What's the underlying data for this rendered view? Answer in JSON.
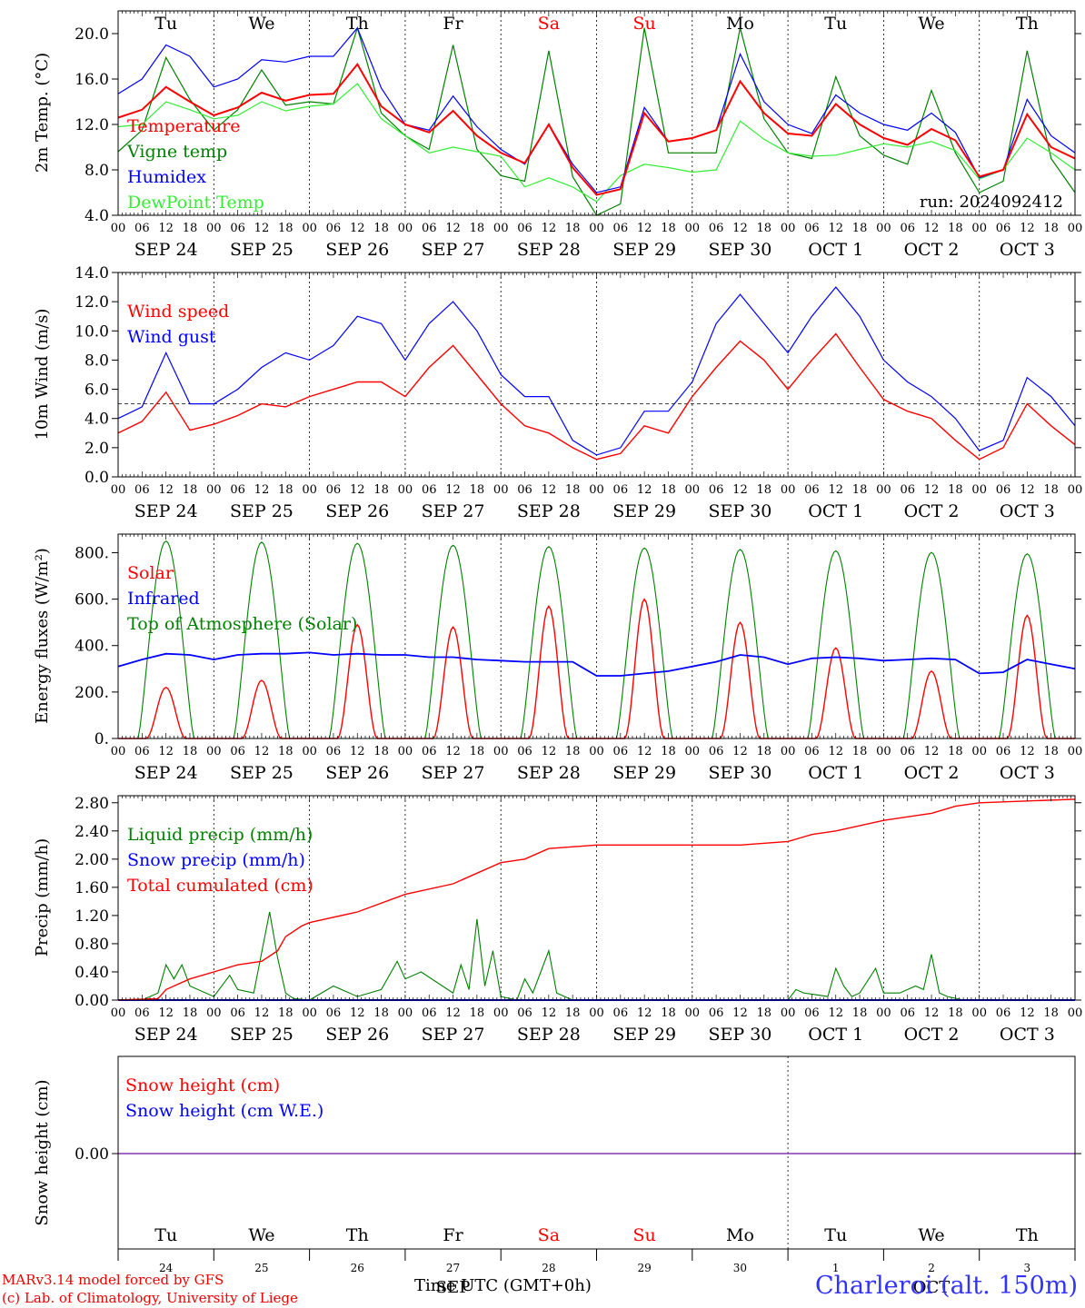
{
  "run_label": "run: 2024092412",
  "x_title": "Time UTC (GMT+0h)",
  "credit": [
    "MARv3.14 model forced by GFS",
    "(c) Lab. of Climatology, University of Liege"
  ],
  "station": "Charleroi (alt. 150m)",
  "days": [
    {
      "dow": "Tu",
      "date": "SEP 24",
      "num": "24",
      "weekend": false
    },
    {
      "dow": "We",
      "date": "SEP 25",
      "num": "25",
      "weekend": false
    },
    {
      "dow": "Th",
      "date": "SEP 26",
      "num": "26",
      "weekend": false
    },
    {
      "dow": "Fr",
      "date": "SEP 27",
      "num": "27",
      "weekend": false
    },
    {
      "dow": "Sa",
      "date": "SEP 28",
      "num": "28",
      "weekend": true
    },
    {
      "dow": "Su",
      "date": "SEP 29",
      "num": "29",
      "weekend": true
    },
    {
      "dow": "Mo",
      "date": "SEP 30",
      "num": "30",
      "weekend": false
    },
    {
      "dow": "Tu",
      "date": "OCT  1",
      "num": "1",
      "weekend": false
    },
    {
      "dow": "We",
      "date": "OCT  2",
      "num": "2",
      "weekend": false
    },
    {
      "dow": "Th",
      "date": "OCT  3",
      "num": "3",
      "weekend": false
    }
  ],
  "hour_labels": [
    "00",
    "06",
    "12",
    "18"
  ],
  "month_labels": {
    "sep": "SEP",
    "oct": "OCT"
  },
  "colors": {
    "red": "#ff0000",
    "green": "#008000",
    "blue": "#0000ff",
    "light_green": "#33ee33",
    "weekend": "#ff0000",
    "axis": "#000000"
  },
  "chart_data": [
    {
      "type": "line",
      "ylabel": "2m Temp. (°C)",
      "ylim": [
        4,
        22
      ],
      "yticks": [
        "4.0",
        "8.0",
        "12.0",
        "16.0",
        "20.0"
      ],
      "ytick_values": [
        4,
        8,
        12,
        16,
        20
      ],
      "x_hours": [
        0,
        6,
        12,
        18,
        24,
        30,
        36,
        42,
        48,
        54,
        60,
        66,
        72,
        78,
        84,
        90,
        96,
        102,
        108,
        114,
        120,
        126,
        132,
        138,
        144,
        150,
        156,
        162,
        168,
        174,
        180,
        186,
        192,
        198,
        204,
        210,
        216,
        222,
        228,
        234,
        240
      ],
      "series": [
        {
          "name": "Temperature",
          "color": "#ff0000",
          "values": [
            12.6,
            13.3,
            15.3,
            14.0,
            12.8,
            13.5,
            14.8,
            14.1,
            14.6,
            14.7,
            17.3,
            13.6,
            12.0,
            11.3,
            13.2,
            11.0,
            9.5,
            8.6,
            12.0,
            8.2,
            5.8,
            6.3,
            13.0,
            10.5,
            10.8,
            11.5,
            15.8,
            13.0,
            11.2,
            11.0,
            13.8,
            12.0,
            10.8,
            10.2,
            11.6,
            10.6,
            7.4,
            8.0,
            12.9,
            10.0,
            9.0
          ]
        },
        {
          "name": "Vigne temp",
          "color": "#008000",
          "values": [
            9.6,
            11.5,
            17.9,
            14.2,
            11.5,
            13.3,
            16.8,
            13.7,
            14.0,
            13.8,
            20.5,
            13.0,
            11.0,
            9.8,
            19.0,
            9.8,
            7.5,
            7.0,
            18.5,
            7.4,
            4.0,
            5.0,
            20.5,
            9.5,
            9.5,
            9.5,
            20.5,
            12.5,
            9.5,
            9.0,
            16.2,
            11.0,
            9.3,
            8.5,
            15.0,
            9.5,
            6.0,
            7.0,
            18.5,
            9.0,
            6.0
          ]
        },
        {
          "name": "Humidex",
          "color": "#0000ff",
          "values": [
            14.7,
            16.0,
            19.0,
            18.0,
            15.3,
            16.0,
            17.7,
            17.5,
            18.0,
            18.0,
            20.5,
            15.2,
            12.0,
            11.5,
            14.5,
            11.8,
            9.8,
            8.5,
            12.0,
            8.5,
            6.0,
            6.5,
            13.5,
            10.5,
            10.8,
            11.5,
            18.2,
            14.0,
            12.0,
            11.2,
            14.6,
            13.0,
            12.0,
            11.5,
            13.0,
            11.3,
            7.3,
            8.0,
            14.2,
            11.0,
            9.5
          ]
        },
        {
          "name": "DewPoint Temp",
          "color": "#33ee33",
          "values": [
            11.8,
            12.0,
            14.0,
            13.3,
            12.5,
            12.8,
            14.0,
            13.2,
            13.6,
            13.8,
            15.6,
            12.5,
            11.0,
            9.5,
            10.0,
            9.6,
            9.2,
            6.5,
            7.3,
            6.5,
            5.2,
            7.5,
            8.5,
            8.2,
            7.8,
            8.0,
            12.3,
            10.7,
            9.5,
            9.2,
            9.3,
            9.8,
            10.3,
            10.0,
            10.5,
            9.7,
            7.2,
            8.0,
            10.8,
            9.5,
            8.0
          ]
        }
      ]
    },
    {
      "type": "line",
      "ylabel": "10m Wind (m/s)",
      "ylim": [
        0,
        14
      ],
      "yticks": [
        "0.0",
        "2.0",
        "4.0",
        "6.0",
        "8.0",
        "10.0",
        "12.0",
        "14.0"
      ],
      "ytick_values": [
        0,
        2,
        4,
        6,
        8,
        10,
        12,
        14
      ],
      "reference_line": 5,
      "x_hours": [
        0,
        6,
        12,
        18,
        24,
        30,
        36,
        42,
        48,
        54,
        60,
        66,
        72,
        78,
        84,
        90,
        96,
        102,
        108,
        114,
        120,
        126,
        132,
        138,
        144,
        150,
        156,
        162,
        168,
        174,
        180,
        186,
        192,
        198,
        204,
        210,
        216,
        222,
        228,
        234,
        240
      ],
      "series": [
        {
          "name": "Wind speed",
          "color": "#ff0000",
          "values": [
            3.0,
            3.8,
            5.8,
            3.2,
            3.6,
            4.2,
            5.0,
            4.8,
            5.5,
            6.0,
            6.5,
            6.5,
            5.5,
            7.5,
            9.0,
            7.0,
            5.0,
            3.5,
            3.0,
            2.0,
            1.2,
            1.6,
            3.5,
            3.0,
            5.5,
            7.5,
            9.3,
            8.0,
            6.0,
            8.0,
            9.8,
            7.5,
            5.3,
            4.5,
            4.0,
            2.5,
            1.2,
            2.0,
            5.0,
            3.5,
            2.2
          ]
        },
        {
          "name": "Wind gust",
          "color": "#0000ff",
          "values": [
            4.0,
            4.8,
            8.5,
            5.0,
            5.0,
            6.0,
            7.5,
            8.5,
            8.0,
            9.0,
            11.0,
            10.5,
            8.0,
            10.5,
            12.0,
            10.0,
            7.0,
            5.5,
            5.5,
            2.5,
            1.5,
            2.0,
            4.5,
            4.5,
            6.5,
            10.5,
            12.5,
            10.5,
            8.5,
            11.0,
            13.0,
            11.0,
            8.0,
            6.5,
            5.5,
            4.0,
            1.8,
            2.5,
            6.8,
            5.5,
            3.5
          ]
        }
      ]
    },
    {
      "type": "line",
      "ylabel": "Energy fluxes (W/m²)",
      "ylim": [
        0,
        880
      ],
      "yticks": [
        "0.",
        "200.",
        "400.",
        "600.",
        "800."
      ],
      "ytick_values": [
        0,
        200,
        400,
        600,
        800
      ],
      "series": [
        {
          "name": "Solar",
          "color": "#ff0000",
          "daily_peak": [
            220,
            250,
            490,
            480,
            570,
            600,
            500,
            390,
            290,
            530
          ]
        },
        {
          "name": "Infrared",
          "color": "#0000ff",
          "x_hours": [
            0,
            6,
            12,
            18,
            24,
            30,
            36,
            42,
            48,
            54,
            60,
            66,
            72,
            78,
            84,
            90,
            96,
            102,
            108,
            114,
            120,
            126,
            132,
            138,
            144,
            150,
            156,
            162,
            168,
            174,
            180,
            186,
            192,
            198,
            204,
            210,
            216,
            222,
            228,
            234,
            240
          ],
          "values": [
            310,
            340,
            365,
            360,
            340,
            360,
            365,
            365,
            370,
            360,
            365,
            360,
            360,
            350,
            350,
            340,
            335,
            330,
            330,
            330,
            270,
            270,
            280,
            290,
            310,
            330,
            360,
            350,
            320,
            345,
            350,
            345,
            335,
            340,
            345,
            340,
            280,
            285,
            340,
            320,
            300
          ]
        },
        {
          "name": "Top of Atmosphere (Solar)",
          "color": "#008000",
          "daily_peak": [
            850,
            845,
            840,
            832,
            826,
            820,
            814,
            808,
            801,
            795
          ]
        }
      ]
    },
    {
      "type": "line",
      "ylabel": "Precip (mm/h)",
      "ylim": [
        0,
        2.9
      ],
      "yticks": [
        "0.00",
        "0.40",
        "0.80",
        "1.20",
        "1.60",
        "2.00",
        "2.40",
        "2.80"
      ],
      "ytick_values": [
        0,
        0.4,
        0.8,
        1.2,
        1.6,
        2.0,
        2.4,
        2.8
      ],
      "series": [
        {
          "name": "Liquid precip (mm/h)",
          "color": "#008000",
          "x_hours": [
            0,
            6,
            10,
            12,
            14,
            16,
            18,
            24,
            28,
            30,
            34,
            38,
            40,
            42,
            44,
            48,
            54,
            60,
            66,
            70,
            72,
            76,
            84,
            86,
            88,
            90,
            92,
            94,
            96,
            100,
            102,
            104,
            106,
            108,
            110,
            112,
            114,
            120,
            168,
            170,
            172,
            178,
            180,
            182,
            184,
            186,
            190,
            192,
            196,
            200,
            202,
            204,
            206,
            208,
            212,
            216,
            240
          ],
          "values": [
            0,
            0,
            0.1,
            0.5,
            0.3,
            0.5,
            0.2,
            0.05,
            0.35,
            0.15,
            0.1,
            1.25,
            0.6,
            0.1,
            0.02,
            0,
            0.2,
            0.05,
            0.15,
            0.55,
            0.3,
            0.4,
            0.1,
            0.5,
            0.15,
            1.15,
            0.2,
            0.7,
            0.05,
            0,
            0.3,
            0.1,
            0.4,
            0.7,
            0.1,
            0.05,
            0,
            0,
            0,
            0.15,
            0.1,
            0.05,
            0.45,
            0.2,
            0.05,
            0.1,
            0.45,
            0.1,
            0.1,
            0.2,
            0.15,
            0.65,
            0.1,
            0.05,
            0,
            0,
            0
          ]
        },
        {
          "name": "Snow precip (mm/h)",
          "color": "#0000ff",
          "values": [
            0
          ]
        },
        {
          "name": "Total cumulated (cm)",
          "color": "#ff0000",
          "x_hours": [
            0,
            10,
            12,
            18,
            24,
            30,
            36,
            40,
            42,
            46,
            48,
            60,
            72,
            84,
            90,
            96,
            102,
            108,
            120,
            144,
            156,
            168,
            174,
            180,
            192,
            204,
            210,
            216,
            240
          ],
          "values": [
            0,
            0.02,
            0.15,
            0.3,
            0.4,
            0.5,
            0.55,
            0.7,
            0.9,
            1.05,
            1.1,
            1.25,
            1.5,
            1.65,
            1.8,
            1.95,
            2.0,
            2.15,
            2.2,
            2.2,
            2.2,
            2.25,
            2.35,
            2.4,
            2.55,
            2.65,
            2.75,
            2.8,
            2.85
          ]
        }
      ]
    },
    {
      "type": "line",
      "ylabel": "Snow height (cm)",
      "yticks": [
        "0.00"
      ],
      "series": [
        {
          "name": "Snow height (cm)",
          "color": "#ff0000",
          "values": [
            0.0
          ]
        },
        {
          "name": "Snow height (cm W.E.)",
          "color": "#0000ff",
          "values": [
            0.0
          ]
        }
      ]
    }
  ]
}
